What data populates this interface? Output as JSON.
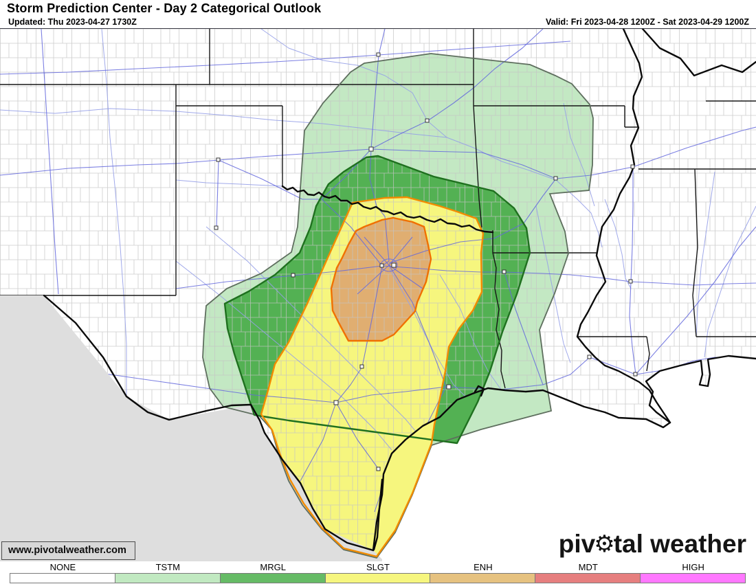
{
  "header": {
    "title": "Storm Prediction Center - Day 2 Categorical Outlook",
    "updated": "Updated: Thu 2023-04-27 1730Z",
    "valid": "Valid: Fri 2023-04-28 1200Z - Sat 2023-04-29 1200Z"
  },
  "map": {
    "watermark": "www.pivotalweather.com",
    "logo_part1": "piv",
    "gear_icon": "⚙",
    "logo_part2": "tal weather"
  },
  "outlooks": [
    {
      "id": "tstm",
      "label": "TSTM",
      "fill": "#C3E8C3",
      "stroke": "#5E6E5E"
    },
    {
      "id": "mrgl",
      "label": "MRGL",
      "fill": "#53B153",
      "stroke": "#1F701F"
    },
    {
      "id": "slgt",
      "label": "SLGT",
      "fill": "#F6F67E",
      "stroke": "#F28B00"
    },
    {
      "id": "enh",
      "label": "ENH",
      "fill": "#E0AE71",
      "stroke": "#F07000"
    }
  ],
  "legend": {
    "items": [
      {
        "label": "NONE",
        "color": "#FFFFFF"
      },
      {
        "label": "TSTM",
        "color": "#C1E9C1"
      },
      {
        "label": "MRGL",
        "color": "#66BB66"
      },
      {
        "label": "SLGT",
        "color": "#F6F67F"
      },
      {
        "label": "ENH",
        "color": "#E6C280"
      },
      {
        "label": "MDT",
        "color": "#E67F7F"
      },
      {
        "label": "HIGH",
        "color": "#FF78FF"
      }
    ]
  }
}
